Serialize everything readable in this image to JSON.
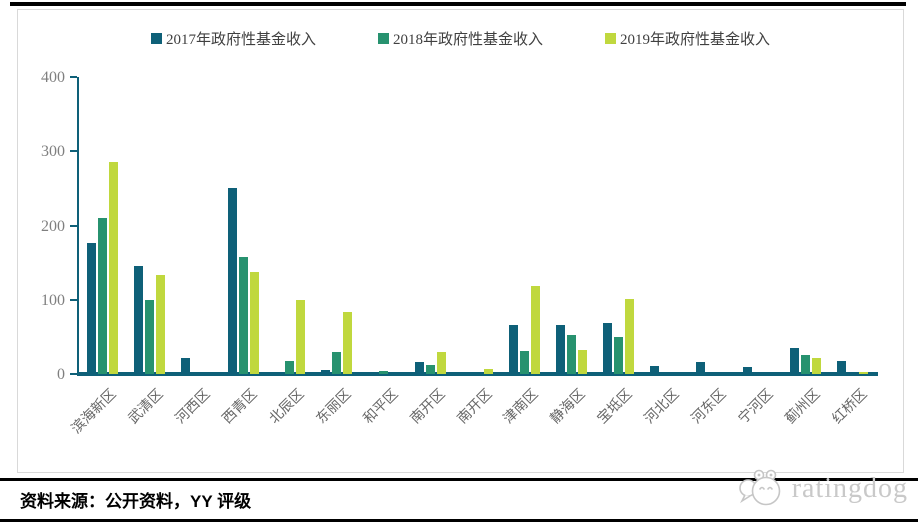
{
  "legend_colors": {
    "y2017": "#0e6078",
    "y2018": "#27926f",
    "y2019": "#c0d83e",
    "axis": "#0e6078"
  },
  "footer": {
    "source": "资料来源：公开资料，YY 评级",
    "logo_text": "ratingdog"
  },
  "chart_data": {
    "type": "bar",
    "title": "",
    "xlabel": "",
    "ylabel": "",
    "categories": [
      "滨海新区",
      "武清区",
      "河西区",
      "西青区",
      "北辰区",
      "东丽区",
      "和平区",
      "南开区",
      "南开区",
      "津南区",
      "静海区",
      "宝坻区",
      "河北区",
      "河东区",
      "宁河区",
      "蓟州区",
      "红桥区"
    ],
    "series": [
      {
        "name": "2017年政府性基金收入",
        "color": "#0e6078",
        "values": [
          176,
          145,
          22,
          251,
          3,
          6,
          3,
          16,
          0,
          66,
          66,
          69,
          11,
          16,
          9,
          35,
          18
        ]
      },
      {
        "name": "2018年政府性基金收入",
        "color": "#27926f",
        "values": [
          210,
          99,
          0,
          157,
          18,
          29,
          4,
          12,
          0,
          31,
          52,
          50,
          0,
          0,
          0,
          25,
          0
        ]
      },
      {
        "name": "2019年政府性基金收入",
        "color": "#c0d83e",
        "values": [
          286,
          133,
          0,
          137,
          100,
          84,
          0,
          30,
          7,
          119,
          32,
          101,
          0,
          0,
          0,
          21,
          3
        ]
      }
    ],
    "ylim": [
      0,
      400
    ],
    "yticks": [
      0,
      100,
      200,
      300,
      400
    ],
    "grid": false,
    "legend_position": "top"
  }
}
